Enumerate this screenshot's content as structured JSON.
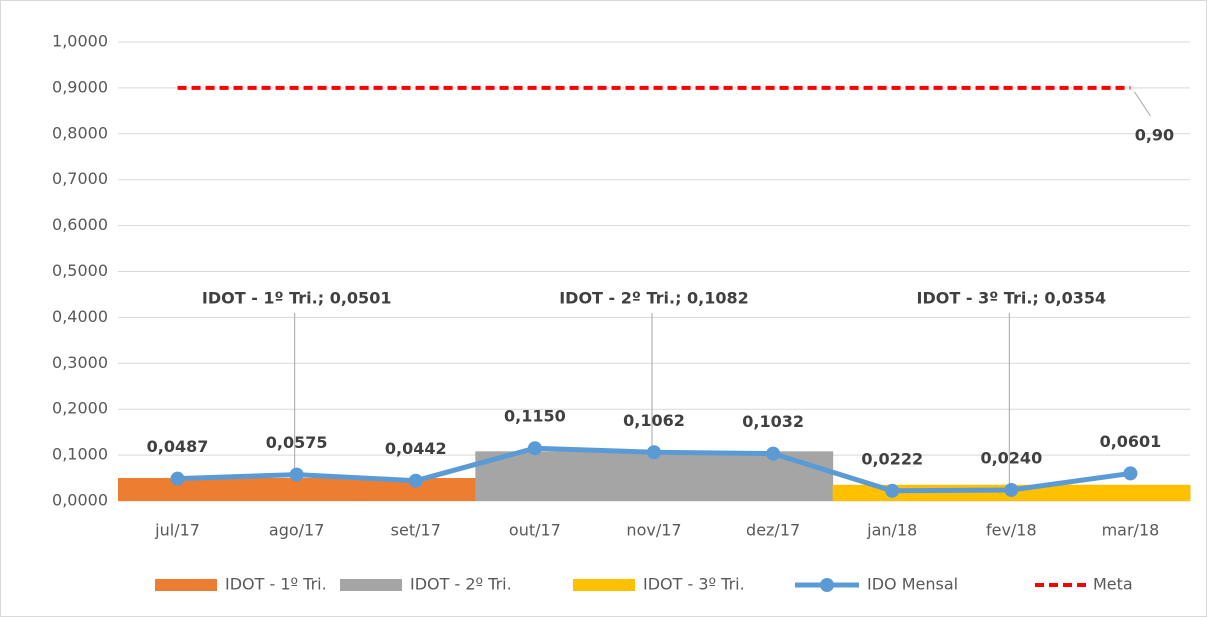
{
  "chart_data": {
    "type": "combo",
    "categories": [
      "jul/17",
      "ago/17",
      "set/17",
      "out/17",
      "nov/17",
      "dez/17",
      "jan/18",
      "fev/18",
      "mar/18"
    ],
    "ylim": [
      0,
      1
    ],
    "yticks": [
      {
        "value": 0,
        "label": "0,0000"
      },
      {
        "value": 0.1,
        "label": "0,1000"
      },
      {
        "value": 0.2,
        "label": "0,2000"
      },
      {
        "value": 0.3,
        "label": "0,3000"
      },
      {
        "value": 0.4,
        "label": "0,4000"
      },
      {
        "value": 0.5,
        "label": "0,5000"
      },
      {
        "value": 0.6,
        "label": "0,6000"
      },
      {
        "value": 0.7,
        "label": "0,7000"
      },
      {
        "value": 0.8,
        "label": "0,8000"
      },
      {
        "value": 0.9,
        "label": "0,9000"
      },
      {
        "value": 1,
        "label": "1,0000"
      }
    ],
    "grid": true,
    "legend": "bottom",
    "series": [
      {
        "name": "IDOT - 1º Tri.",
        "type": "bar",
        "color": "#ed7d31",
        "values": [
          0.0501,
          0.0501,
          0.0501,
          null,
          null,
          null,
          null,
          null,
          null
        ],
        "value_labels": [
          null,
          "IDOT - 1º Tri.; 0,0501",
          null,
          null,
          null,
          null,
          null,
          null,
          null
        ]
      },
      {
        "name": "IDOT - 2º Tri.",
        "type": "bar",
        "color": "#a5a5a5",
        "values": [
          null,
          null,
          null,
          0.1082,
          0.1082,
          0.1082,
          null,
          null,
          null
        ],
        "value_labels": [
          null,
          null,
          null,
          null,
          "IDOT - 2º Tri.; 0,1082",
          null,
          null,
          null,
          null
        ]
      },
      {
        "name": "IDOT - 3º Tri.",
        "type": "bar",
        "color": "#ffc000",
        "values": [
          null,
          null,
          null,
          null,
          null,
          null,
          0.0354,
          0.0354,
          0.0354
        ],
        "value_labels": [
          null,
          null,
          null,
          null,
          null,
          null,
          null,
          "IDOT - 3º Tri.; 0,0354",
          null
        ]
      },
      {
        "name": "IDO Mensal",
        "type": "line",
        "color": "#5b9bd5",
        "values": [
          0.0487,
          0.0575,
          0.0442,
          0.115,
          0.1062,
          0.1032,
          0.0222,
          0.024,
          0.0601
        ],
        "value_labels": [
          "0,0487",
          "0,0575",
          "0,0442",
          "0,1150",
          "0,1062",
          "0,1032",
          "0,0222",
          "0,0240",
          "0,0601"
        ]
      },
      {
        "name": "Meta",
        "type": "dashed",
        "color": "#ff0000",
        "values": [
          0.9,
          0.9,
          0.9,
          0.9,
          0.9,
          0.9,
          0.9,
          0.9,
          0.9
        ],
        "value_labels": [
          null,
          null,
          null,
          null,
          null,
          null,
          null,
          null,
          "0,90"
        ]
      }
    ]
  }
}
